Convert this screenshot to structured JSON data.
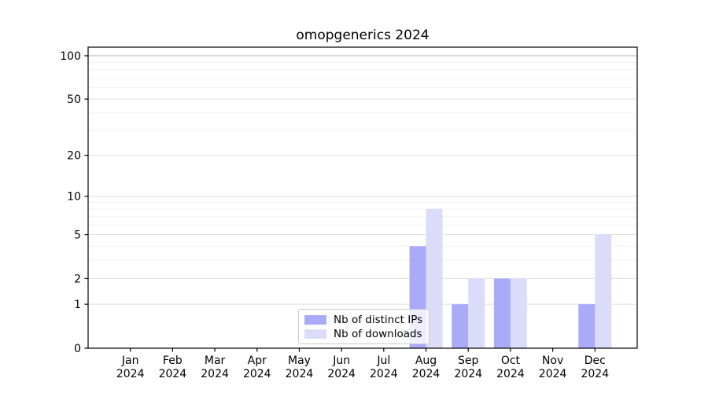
{
  "chart_data": {
    "type": "bar",
    "title": "omopgenerics 2024",
    "categories": [
      {
        "label": "Jan",
        "sub": "2024"
      },
      {
        "label": "Feb",
        "sub": "2024"
      },
      {
        "label": "Mar",
        "sub": "2024"
      },
      {
        "label": "Apr",
        "sub": "2024"
      },
      {
        "label": "May",
        "sub": "2024"
      },
      {
        "label": "Jun",
        "sub": "2024"
      },
      {
        "label": "Jul",
        "sub": "2024"
      },
      {
        "label": "Aug",
        "sub": "2024"
      },
      {
        "label": "Sep",
        "sub": "2024"
      },
      {
        "label": "Oct",
        "sub": "2024"
      },
      {
        "label": "Nov",
        "sub": "2024"
      },
      {
        "label": "Dec",
        "sub": "2024"
      }
    ],
    "series": [
      {
        "name": "Nb of distinct IPs",
        "color": "#a9abf8",
        "values": [
          0,
          0,
          0,
          0,
          0,
          0,
          0,
          4,
          1,
          2,
          0,
          1
        ]
      },
      {
        "name": "Nb of downloads",
        "color": "#dadcfa",
        "values": [
          0,
          0,
          0,
          0,
          0,
          0,
          0,
          8,
          2,
          2,
          0,
          5
        ]
      }
    ],
    "y_scale": "log1p",
    "yticks": [
      0,
      1,
      2,
      5,
      10,
      20,
      50,
      100
    ],
    "grid_major": [
      1,
      2,
      5,
      10,
      20,
      50
    ],
    "grid_minor": [
      3,
      4,
      6,
      7,
      8,
      9,
      30,
      40,
      60,
      70,
      80,
      90
    ],
    "grid_top": 100,
    "ylim": [
      0,
      114.7
    ],
    "legend_position": "bottom-center",
    "grid_on": true,
    "colors": {
      "axis": "#000000",
      "text": "#000000",
      "grid_major": "#dddddd",
      "grid_minor": "#f2f2f2",
      "grid_top_line": "#bdbdbd"
    }
  }
}
